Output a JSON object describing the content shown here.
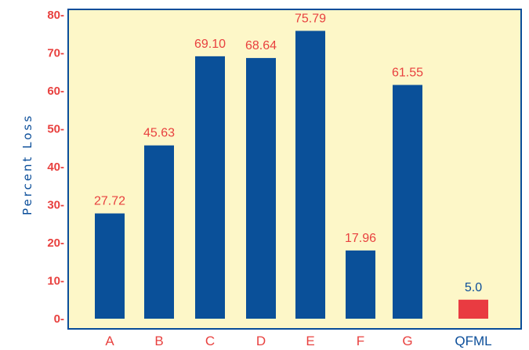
{
  "colors": {
    "plot_background": "#fdf7c8",
    "frame": "#0a4d99",
    "bar": "#0a5099",
    "highlight_bar": "#e93b41",
    "label_red": "#e8413f",
    "label_blue": "#0a4d99"
  },
  "chart_data": {
    "type": "bar",
    "title": "",
    "xlabel": "",
    "ylabel": "Percent Loss",
    "ylim": [
      0,
      80
    ],
    "yticks": [
      0,
      10,
      20,
      30,
      40,
      50,
      60,
      70,
      80
    ],
    "ytick_labels": [
      "0-",
      "10-",
      "20-",
      "30-",
      "40-",
      "50-",
      "60-",
      "70-",
      "80-"
    ],
    "grid": false,
    "legend": "none",
    "categories": [
      "A",
      "B",
      "C",
      "D",
      "E",
      "F",
      "G",
      "QFML"
    ],
    "values": [
      27.72,
      45.63,
      69.1,
      68.64,
      75.79,
      17.96,
      61.55,
      5.0
    ],
    "value_labels": [
      "27.72",
      "45.63",
      "69.10",
      "68.64",
      "75.79",
      "17.96",
      "61.55",
      "5.0"
    ],
    "highlight_category": "QFML"
  }
}
